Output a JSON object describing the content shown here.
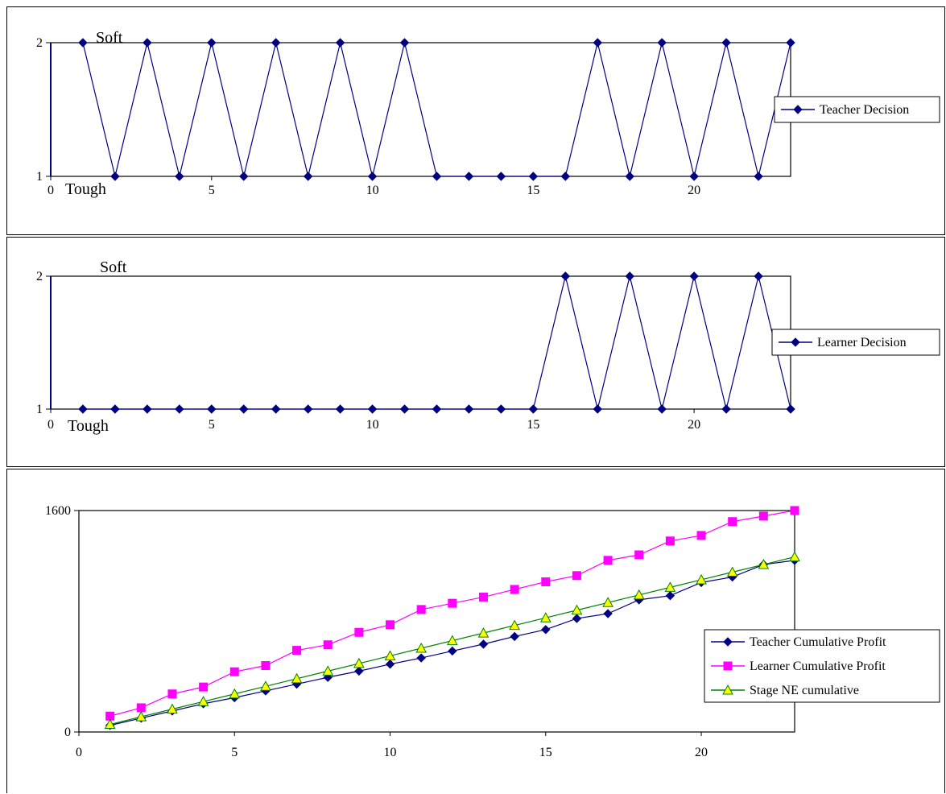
{
  "chart_data": [
    {
      "type": "line",
      "xlim": [
        0,
        23
      ],
      "ylim": [
        1,
        2
      ],
      "x_ticks": [
        "0",
        "5",
        "10",
        "15",
        "20"
      ],
      "y_ticks": [
        "1",
        "2"
      ],
      "annotations": {
        "top": "Soft",
        "bottom": "Tough"
      },
      "legend_position": "right",
      "series": [
        {
          "name": "Teacher Decision",
          "color": "#000080",
          "marker": "diamond",
          "x": [
            1,
            2,
            3,
            4,
            5,
            6,
            7,
            8,
            9,
            10,
            11,
            12,
            13,
            14,
            15,
            16,
            17,
            18,
            19,
            20,
            21,
            22,
            23
          ],
          "values": [
            2,
            1,
            2,
            1,
            2,
            1,
            2,
            1,
            2,
            1,
            2,
            1,
            1,
            1,
            1,
            1,
            2,
            1,
            2,
            1,
            2,
            1,
            2
          ]
        }
      ]
    },
    {
      "type": "line",
      "xlim": [
        0,
        23
      ],
      "ylim": [
        1,
        2
      ],
      "x_ticks": [
        "0",
        "5",
        "10",
        "15",
        "20"
      ],
      "y_ticks": [
        "1",
        "2"
      ],
      "annotations": {
        "top": "Soft",
        "bottom": "Tough"
      },
      "legend_position": "right",
      "series": [
        {
          "name": "Learner Decision",
          "color": "#000080",
          "marker": "diamond",
          "x": [
            1,
            2,
            3,
            4,
            5,
            6,
            7,
            8,
            9,
            10,
            11,
            12,
            13,
            14,
            15,
            16,
            17,
            18,
            19,
            20,
            21,
            22,
            23
          ],
          "values": [
            1,
            1,
            1,
            1,
            1,
            1,
            1,
            1,
            1,
            1,
            1,
            1,
            1,
            1,
            1,
            2,
            1,
            2,
            1,
            2,
            1,
            2,
            1
          ]
        }
      ]
    },
    {
      "type": "line",
      "xlim": [
        0,
        23
      ],
      "ylim": [
        0,
        1600
      ],
      "x_ticks": [
        "0",
        "5",
        "10",
        "15",
        "20"
      ],
      "y_ticks": [
        "0",
        "1600"
      ],
      "legend_position": "right",
      "series": [
        {
          "name": "Teacher Cumulative  Profit",
          "color": "#000080",
          "marker": "diamond",
          "x": [
            1,
            2,
            3,
            4,
            5,
            6,
            7,
            8,
            9,
            10,
            11,
            12,
            13,
            14,
            15,
            16,
            17,
            18,
            19,
            20,
            21,
            22,
            23
          ],
          "values": [
            48,
            100,
            152,
            204,
            248,
            297,
            346,
            395,
            440,
            490,
            535,
            585,
            635,
            690,
            740,
            820,
            855,
            955,
            985,
            1080,
            1120,
            1210,
            1240
          ]
        },
        {
          "name": "Learner Cumulative  Profit",
          "color": "#FF00FF",
          "marker": "square",
          "x": [
            1,
            2,
            3,
            4,
            5,
            6,
            7,
            8,
            9,
            10,
            11,
            12,
            13,
            14,
            15,
            16,
            17,
            18,
            19,
            20,
            21,
            22,
            23
          ],
          "values": [
            115,
            175,
            275,
            325,
            435,
            480,
            590,
            630,
            720,
            775,
            885,
            930,
            975,
            1030,
            1085,
            1130,
            1240,
            1280,
            1380,
            1420,
            1520,
            1560,
            1600
          ]
        },
        {
          "name": "Stage NE cumulative",
          "color": "#008000",
          "marker": "triangle",
          "marker_fill": "#FFFF00",
          "x": [
            1,
            2,
            3,
            4,
            5,
            6,
            7,
            8,
            9,
            10,
            11,
            12,
            13,
            14,
            15,
            16,
            17,
            18,
            19,
            20,
            21,
            22,
            23
          ],
          "values": [
            55,
            110,
            165,
            220,
            275,
            330,
            385,
            440,
            495,
            550,
            605,
            660,
            715,
            770,
            825,
            880,
            935,
            990,
            1045,
            1100,
            1155,
            1210,
            1265
          ]
        }
      ]
    }
  ]
}
